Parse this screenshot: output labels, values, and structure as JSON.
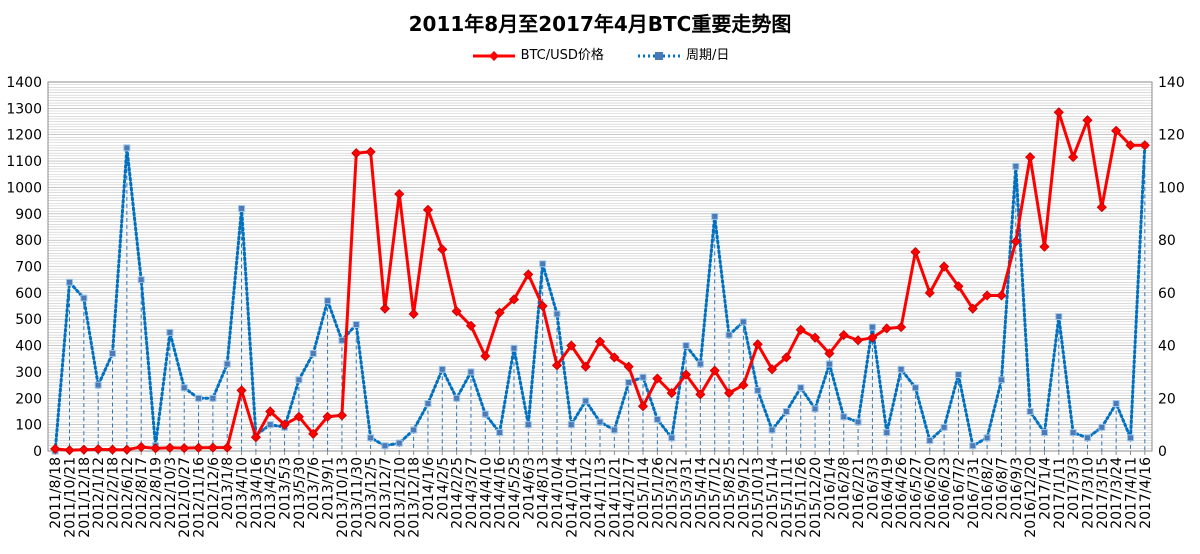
{
  "chart_data": {
    "type": "line",
    "title": "2011年8月至2017年4月BTC重要走势图",
    "legend": {
      "placement": "top-center"
    },
    "grid": true,
    "y_left_lim": [
      0,
      1400
    ],
    "y_left_ticks": [
      "0",
      "100",
      "200",
      "300",
      "400",
      "500",
      "600",
      "700",
      "800",
      "900",
      "1000",
      "1100",
      "1200",
      "1300",
      "1400"
    ],
    "y_right_lim": [
      0,
      140
    ],
    "y_right_ticks": [
      "0",
      "20",
      "40",
      "60",
      "80",
      "100",
      "120",
      "140"
    ],
    "categories": [
      "2011/8/18",
      "2011/10/21",
      "2011/12/18",
      "2012/1/12",
      "2012/2/18",
      "2012/6/12",
      "2012/8/17",
      "2012/8/19",
      "2012/10/3",
      "2012/10/27",
      "2012/11/16",
      "2012/12/6",
      "2013/1/8",
      "2013/4/10",
      "2013/4/16",
      "2013/4/25",
      "2013/5/3",
      "2013/5/30",
      "2013/7/6",
      "2013/9/1",
      "2013/10/13",
      "2013/11/30",
      "2013/12/5",
      "2013/12/7",
      "2013/12/10",
      "2013/12/18",
      "2014/1/6",
      "2014/2/5",
      "2014/2/25",
      "2014/3/27",
      "2014/4/10",
      "2014/4/16",
      "2014/5/25",
      "2014/6/3",
      "2014/8/13",
      "2014/10/4",
      "2014/10/14",
      "2014/11/2",
      "2014/11/13",
      "2014/11/21",
      "2014/12/17",
      "2015/1/14",
      "2015/1/26",
      "2015/3/12",
      "2015/3/31",
      "2015/4/14",
      "2015/7/12",
      "2015/8/25",
      "2015/9/12",
      "2015/10/13",
      "2015/11/4",
      "2015/11/11",
      "2015/11/26",
      "2015/12/20",
      "2016/1/4",
      "2016/2/8",
      "2016/2/21",
      "2016/3/3",
      "2016/4/19",
      "2016/4/26",
      "2016/5/27",
      "2016/6/20",
      "2016/6/23",
      "2016/7/2",
      "2016/7/31",
      "2016/8/2",
      "2016/8/7",
      "2016/9/3",
      "2016/12/20",
      "2017/1/4",
      "2017/1/11",
      "2017/3/3",
      "2017/3/10",
      "2017/3/15",
      "2017/3/24",
      "2017/4/11",
      "2017/4/16"
    ],
    "tick_labels": [
      "2011/8/18",
      "2011/10/21",
      "2011/12/18",
      "2012/1/12",
      "2012/2/18",
      "2012/6/12",
      "2012/8/17",
      "2012/8/19",
      "2012/10/3",
      "2012/10/27",
      "2012/11/16",
      "2012/12/6",
      "2013/1/8",
      "2013/4/10",
      "2013/4/16",
      "2013/4/25",
      "2013/5/3",
      "2013/5/30",
      "2013/7/6",
      "2013/9/1",
      "2013/10/13",
      "2013/11/30",
      "2013/12/5",
      "2013/12/7",
      "2013/12/10",
      "2013/12/18",
      "2014/1/6",
      "2014/2/5",
      "2014/2/25",
      "2014/3/27",
      "2014/4/10",
      "2014/4/16",
      "2014/5/25",
      "2014/6/3",
      "2014/8/13",
      "2014/10/4",
      "2014/10/14",
      "2014/11/2",
      "2014/11/13",
      "2014/11/21",
      "2014/12/17",
      "2015/1/14",
      "2015/1/26",
      "2015/3/12",
      "2015/3/31",
      "2015/4/14",
      "2015/7/12",
      "2015/8/25",
      "2015/9/12",
      "2015/10/13",
      "2015/11/4",
      "2015/11/11",
      "2015/11/26",
      "2015/12/20",
      "2016/1/4",
      "2016/2/8",
      "2016/2/21",
      "2016/3/3",
      "2016/4/19",
      "2016/4/26",
      "2016/5/27",
      "2016/6/20",
      "2016/6/23",
      "2016/7/2",
      "2016/7/31",
      "2016/8/2",
      "2016/8/7",
      "2016/9/3",
      "2016/12/20",
      "2017/1/4",
      "2017/1/11",
      "2017/3/3",
      "2017/3/10",
      "2017/3/15",
      "2017/3/24",
      "2017/4/11",
      "2017/4/16"
    ],
    "series": [
      {
        "name": "BTC/USD价格",
        "axis": "left",
        "color": "#ff0000",
        "style": "solid-line-diamond-markers",
        "values": [
          8,
          3,
          5,
          7,
          5,
          5,
          15,
          10,
          12,
          11,
          12,
          13,
          13,
          230,
          52,
          150,
          100,
          130,
          65,
          130,
          135,
          1130,
          1135,
          540,
          975,
          520,
          915,
          765,
          530,
          475,
          360,
          525,
          575,
          670,
          550,
          325,
          400,
          320,
          415,
          355,
          320,
          170,
          275,
          220,
          290,
          215,
          305,
          220,
          250,
          405,
          310,
          355,
          460,
          430,
          370,
          440,
          420,
          430,
          465,
          470,
          755,
          600,
          700,
          625,
          540,
          590,
          590,
          795,
          1115,
          775,
          1285,
          1115,
          1255,
          925,
          1215,
          1160,
          1160
        ]
      },
      {
        "name": "周期/日",
        "axis": "right",
        "color": "#0070c0",
        "style": "dotted-line-square-markers",
        "values": [
          0,
          64,
          58,
          25,
          37,
          115,
          65,
          2,
          45,
          24,
          20,
          20,
          33,
          92,
          6,
          10,
          9,
          27,
          37,
          57,
          42,
          48,
          5,
          2,
          3,
          8,
          18,
          31,
          20,
          30,
          14,
          7,
          39,
          10,
          71,
          52,
          10,
          19,
          11,
          8,
          26,
          28,
          12,
          5,
          40,
          33,
          89,
          44,
          49,
          23,
          8,
          15,
          24,
          16,
          33,
          13,
          11,
          47,
          7,
          31,
          24,
          4,
          9,
          29,
          2,
          5,
          27,
          108,
          15,
          7,
          51,
          7,
          5,
          9,
          18,
          5,
          116
        ]
      }
    ]
  }
}
